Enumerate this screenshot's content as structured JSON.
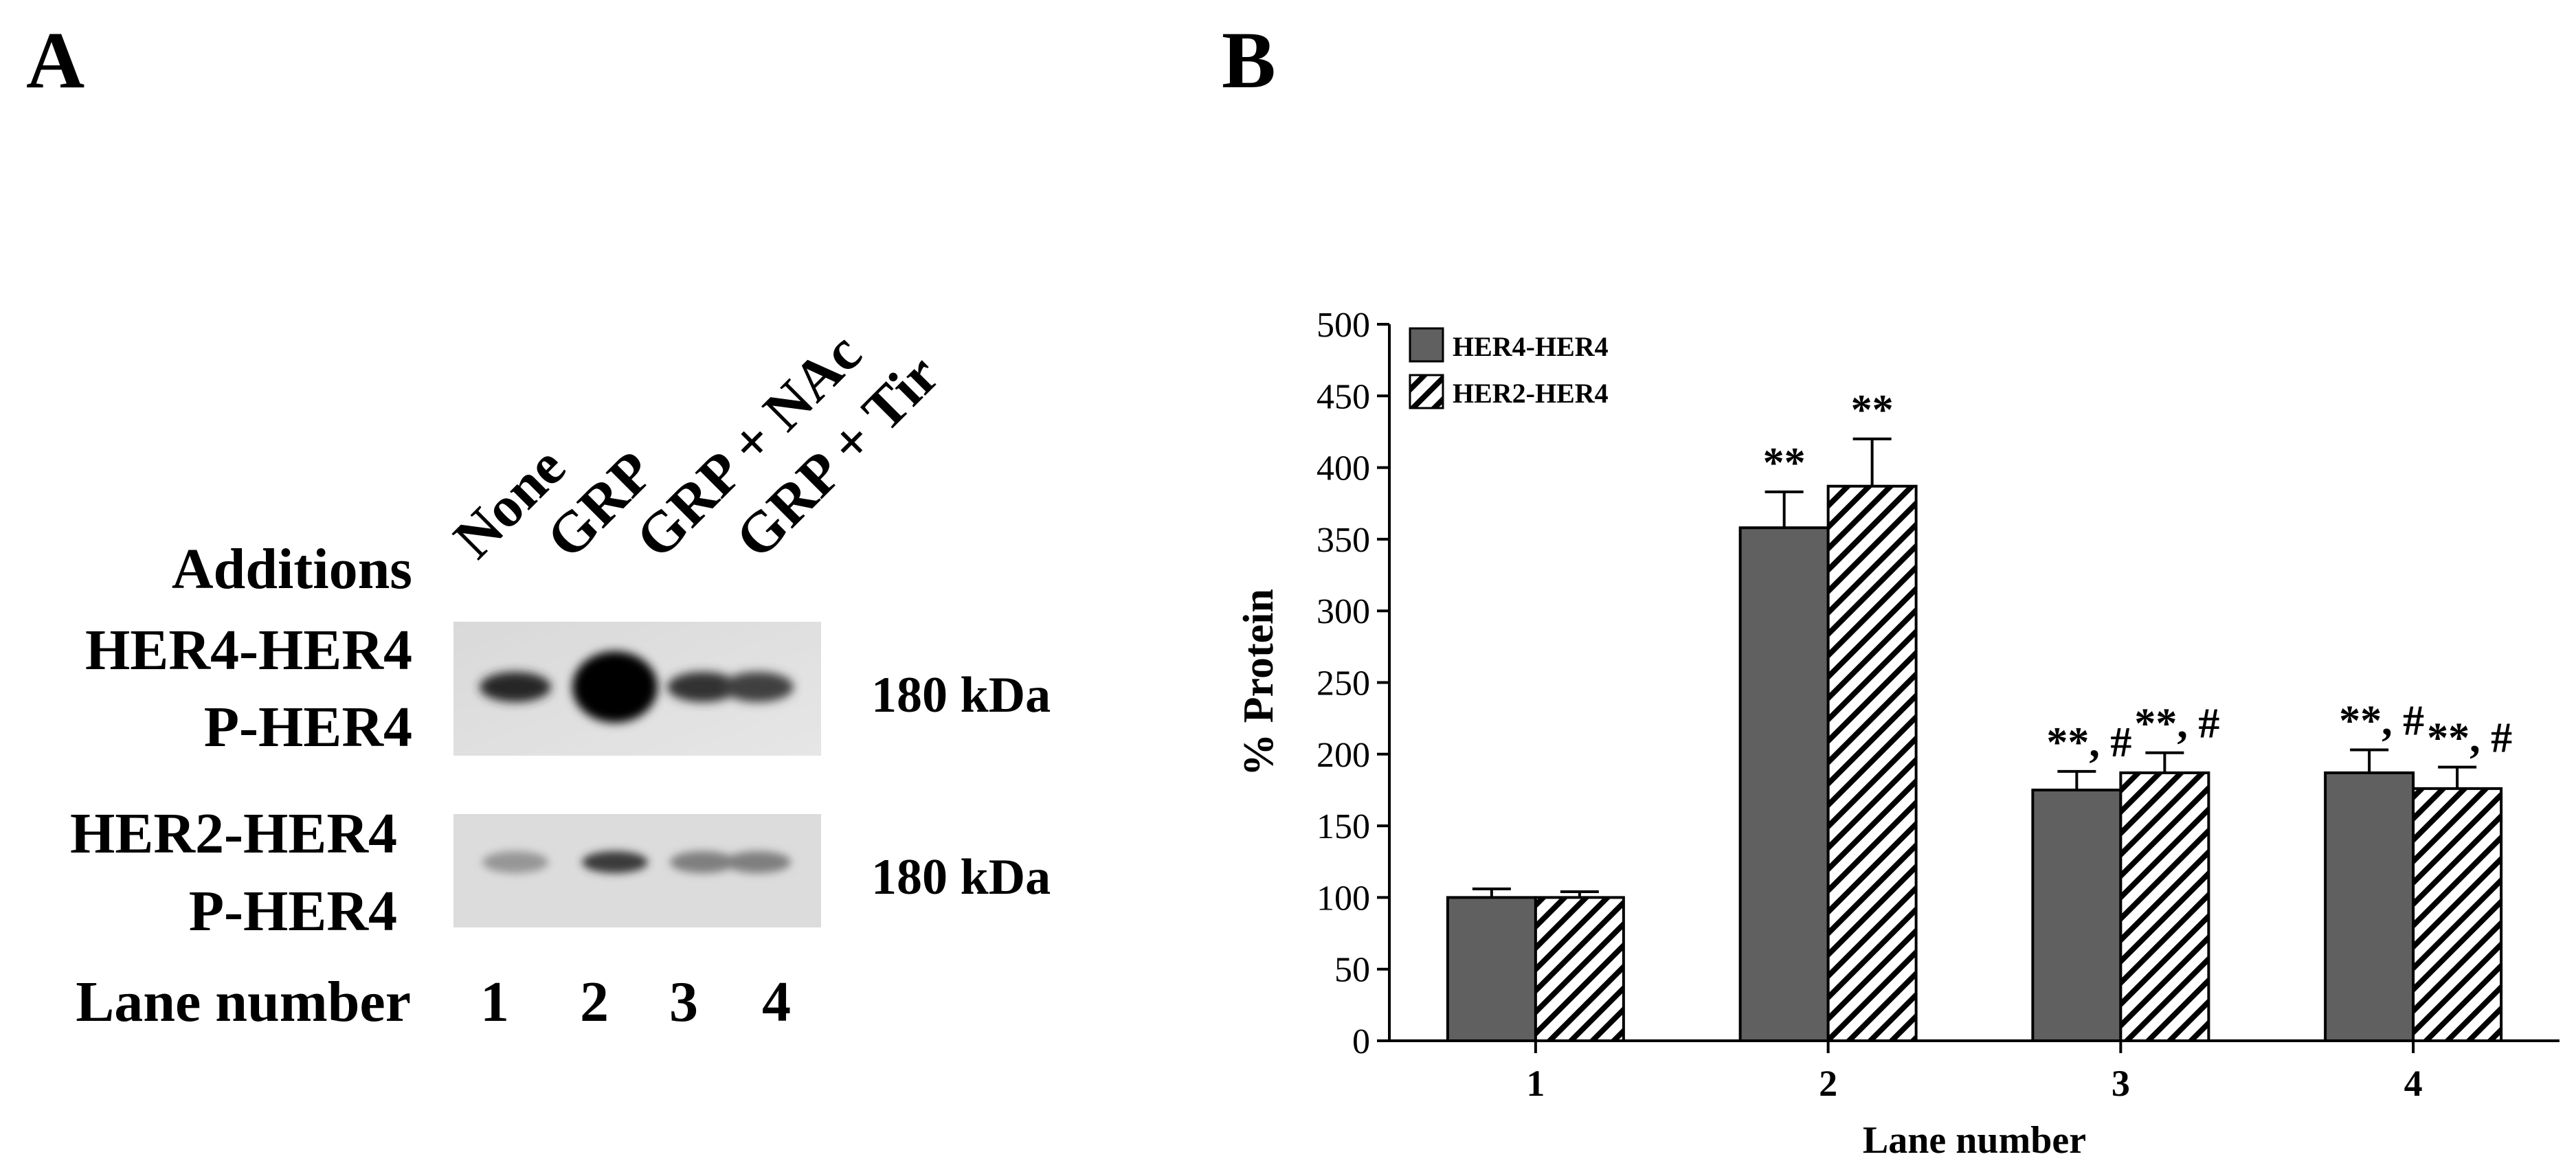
{
  "panel_a": {
    "letter": "A",
    "additions_label": "Additions",
    "treatments": [
      "None",
      "GRP",
      "GRP + NAc",
      "GRP + Tir"
    ],
    "blots": [
      {
        "label_line1": "HER4-HER4",
        "label_line2": "P-HER4",
        "size": "180 kDa",
        "band_intensity": [
          0.85,
          1.0,
          0.8,
          0.75
        ]
      },
      {
        "label_line1": "HER2-HER4",
        "label_line2": "P-HER4",
        "size": "180 kDa",
        "band_intensity": [
          0.35,
          0.75,
          0.45,
          0.45
        ]
      }
    ],
    "lane_label": "Lane number",
    "lanes": [
      "1",
      "2",
      "3",
      "4"
    ]
  },
  "panel_b": {
    "letter": "B"
  },
  "chart_data": {
    "type": "bar",
    "categories": [
      "1",
      "2",
      "3",
      "4"
    ],
    "xlabel": "Lane number",
    "ylabel": "% Protein",
    "ylim": [
      0,
      500
    ],
    "yticks": [
      0,
      50,
      100,
      150,
      200,
      250,
      300,
      350,
      400,
      450,
      500
    ],
    "legend_position": "top-left",
    "series": [
      {
        "name": "HER4-HER4",
        "fill": "solid",
        "color": "#606060",
        "values": [
          100,
          358,
          175,
          187
        ],
        "errors": [
          6,
          25,
          13,
          16
        ],
        "annotations": [
          "",
          "**",
          "**, #",
          "**, #"
        ]
      },
      {
        "name": "HER2-HER4",
        "fill": "hatched",
        "color": "#000000",
        "values": [
          100,
          387,
          187,
          176
        ],
        "errors": [
          4,
          33,
          14,
          15
        ],
        "annotations": [
          "",
          "**",
          "**, #",
          "**, #"
        ]
      }
    ]
  }
}
